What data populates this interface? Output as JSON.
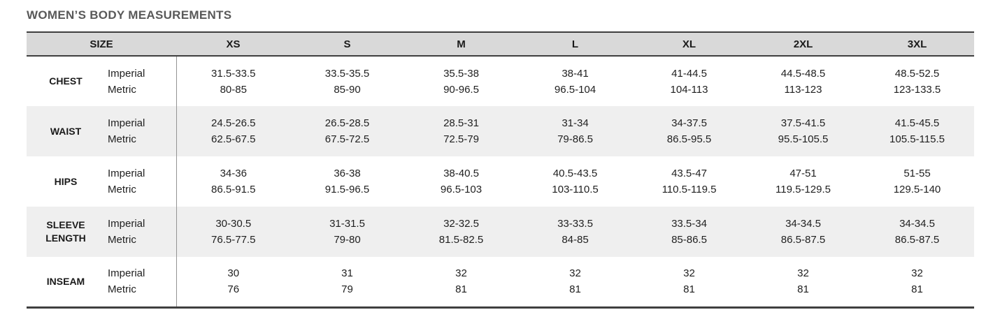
{
  "title": "WOMEN’S BODY MEASUREMENTS",
  "colors": {
    "title_text": "#595959",
    "header_background": "#d9d9d9",
    "header_border": "#3f3f3f",
    "alternate_row_background": "#efefef",
    "column_divider": "#949494",
    "cell_text": "#1f1f1f"
  },
  "table": {
    "size_header": "SIZE",
    "sizes": [
      "XS",
      "S",
      "M",
      "L",
      "XL",
      "2XL",
      "3XL"
    ],
    "unit_labels": [
      "Imperial",
      "Metric"
    ],
    "rows": [
      {
        "label": "CHEST",
        "imperial": [
          "31.5-33.5",
          "33.5-35.5",
          "35.5-38",
          "38-41",
          "41-44.5",
          "44.5-48.5",
          "48.5-52.5"
        ],
        "metric": [
          "80-85",
          "85-90",
          "90-96.5",
          "96.5-104",
          "104-113",
          "113-123",
          "123-133.5"
        ]
      },
      {
        "label": "WAIST",
        "imperial": [
          "24.5-26.5",
          "26.5-28.5",
          "28.5-31",
          "31-34",
          "34-37.5",
          "37.5-41.5",
          "41.5-45.5"
        ],
        "metric": [
          "62.5-67.5",
          "67.5-72.5",
          "72.5-79",
          "79-86.5",
          "86.5-95.5",
          "95.5-105.5",
          "105.5-115.5"
        ]
      },
      {
        "label": "HIPS",
        "imperial": [
          "34-36",
          "36-38",
          "38-40.5",
          "40.5-43.5",
          "43.5-47",
          "47-51",
          "51-55"
        ],
        "metric": [
          "86.5-91.5",
          "91.5-96.5",
          "96.5-103",
          "103-110.5",
          "110.5-119.5",
          "119.5-129.5",
          "129.5-140"
        ]
      },
      {
        "label": "SLEEVE LENGTH",
        "imperial": [
          "30-30.5",
          "31-31.5",
          "32-32.5",
          "33-33.5",
          "33.5-34",
          "34-34.5",
          "34-34.5"
        ],
        "metric": [
          "76.5-77.5",
          "79-80",
          "81.5-82.5",
          "84-85",
          "85-86.5",
          "86.5-87.5",
          "86.5-87.5"
        ]
      },
      {
        "label": "INSEAM",
        "imperial": [
          "30",
          "31",
          "32",
          "32",
          "32",
          "32",
          "32"
        ],
        "metric": [
          "76",
          "79",
          "81",
          "81",
          "81",
          "81",
          "81"
        ]
      }
    ]
  }
}
